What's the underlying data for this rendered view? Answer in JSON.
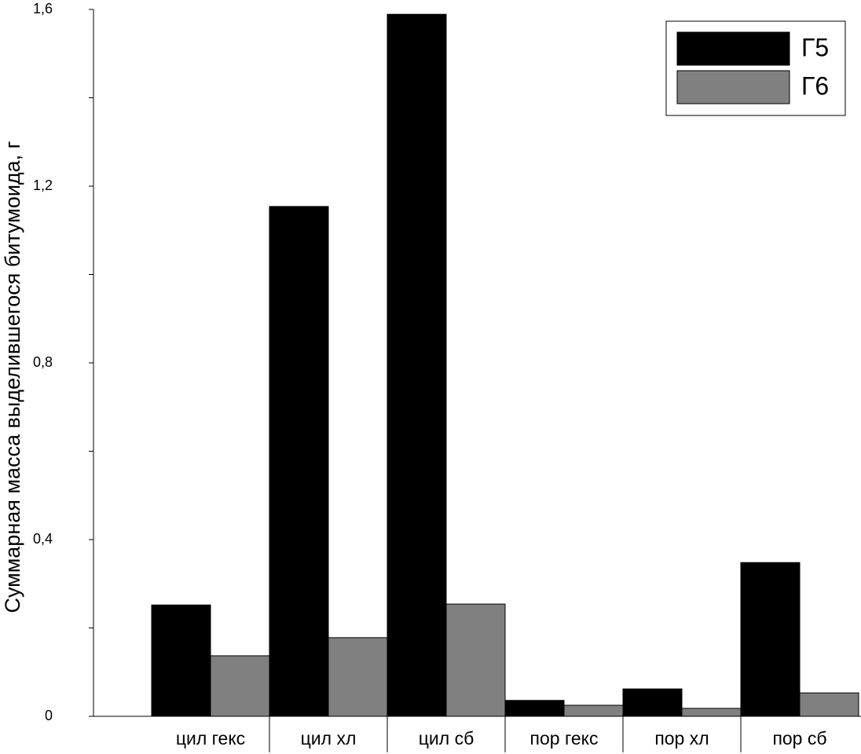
{
  "chart_data": {
    "type": "bar",
    "y_label": "Суммарная масса выделившегося битумоида, г",
    "categories": [
      "цил гекс",
      "цил хл",
      "цил сб",
      "пор гекс",
      "пор хл",
      "пор сб"
    ],
    "series": [
      {
        "name": "Г5",
        "color": "#000000",
        "values": [
          0.252,
          1.154,
          1.589,
          0.036,
          0.062,
          0.348
        ]
      },
      {
        "name": "Г6",
        "color": "#808080",
        "values": [
          0.137,
          0.178,
          0.254,
          0.025,
          0.018,
          0.053
        ]
      }
    ],
    "ylim": [
      0,
      1.6
    ],
    "yticks": [
      0,
      {
        "value": 0.4,
        "label": "0,4"
      },
      {
        "value": 0.8,
        "label": "0,8"
      },
      {
        "value": 1.2,
        "label": "1,2"
      },
      {
        "value": 1.6,
        "label": "1,6"
      }
    ],
    "yminorticks": [
      0.2,
      0.6,
      1.0,
      1.4
    ],
    "legend": "top-right"
  }
}
